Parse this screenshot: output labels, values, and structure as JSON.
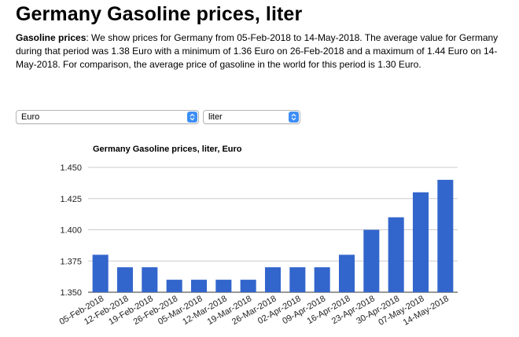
{
  "page": {
    "title": "Germany Gasoline prices, liter",
    "intro_label": "Gasoline prices",
    "intro_text": ": We show prices for Germany from 05-Feb-2018 to 14-May-2018. The average value for Germany during that period was 1.38 Euro with a minimum of 1.36 Euro on 26-Feb-2018 and a maximum of 1.44 Euro on 14-May-2018. For comparison, the average price of gasoline in the world for this period is 1.30 Euro."
  },
  "controls": {
    "currency": "Euro",
    "unit": "liter",
    "accent_color": "#3d8ef5"
  },
  "chart_data": {
    "type": "bar",
    "title": "Germany Gasoline prices, liter, Euro",
    "xlabel": "",
    "ylabel": "",
    "categories": [
      "05-Feb-2018",
      "12-Feb-2018",
      "19-Feb-2018",
      "26-Feb-2018",
      "05-Mar-2018",
      "12-Mar-2018",
      "19-Mar-2018",
      "26-Mar-2018",
      "02-Apr-2018",
      "09-Apr-2018",
      "16-Apr-2018",
      "23-Apr-2018",
      "30-Apr-2018",
      "07-May-2018",
      "14-May-2018"
    ],
    "values": [
      1.38,
      1.37,
      1.37,
      1.36,
      1.36,
      1.36,
      1.36,
      1.37,
      1.37,
      1.37,
      1.38,
      1.4,
      1.41,
      1.43,
      1.44
    ],
    "ylim": [
      1.35,
      1.45
    ],
    "yticks": [
      "1.350",
      "1.375",
      "1.400",
      "1.425",
      "1.450"
    ],
    "bar_color": "#3366cc",
    "grid": true,
    "legend": "none"
  }
}
